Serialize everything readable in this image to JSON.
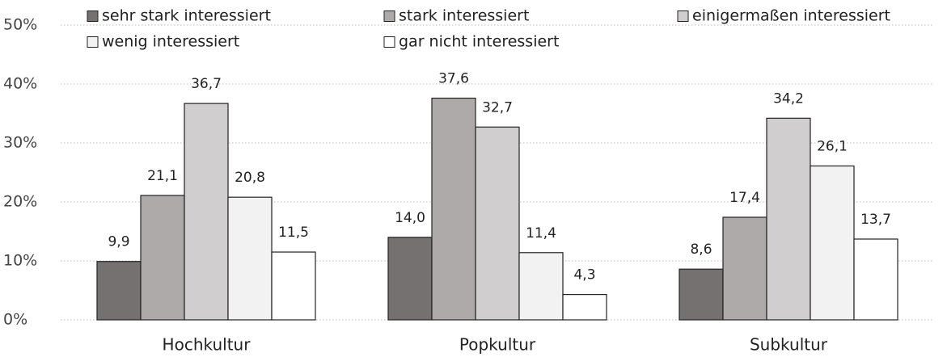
{
  "chart_data": {
    "type": "bar",
    "categories": [
      "Hochkultur",
      "Popkultur",
      "Subkultur"
    ],
    "series": [
      {
        "name": "sehr stark interessiert",
        "color": "#767171",
        "values": [
          9.9,
          14.0,
          8.6
        ],
        "value_labels": [
          "9,9",
          "14,0",
          "8,6"
        ]
      },
      {
        "name": "stark interessiert",
        "color": "#aeaaaa",
        "values": [
          21.1,
          37.6,
          17.4
        ],
        "value_labels": [
          "21,1",
          "37,6",
          "17,4"
        ]
      },
      {
        "name": "einigermaßen interessiert",
        "color": "#d0cece",
        "values": [
          36.7,
          32.7,
          34.2
        ],
        "value_labels": [
          "36,7",
          "32,7",
          "34,2"
        ]
      },
      {
        "name": "wenig interessiert",
        "color": "#f2f2f2",
        "values": [
          20.8,
          11.4,
          26.1
        ],
        "value_labels": [
          "20,8",
          "11,4",
          "26,1"
        ]
      },
      {
        "name": "gar nicht interessiert",
        "color": "#ffffff",
        "values": [
          11.5,
          4.3,
          13.7
        ],
        "value_labels": [
          "11,5",
          "4,3",
          "13,7"
        ]
      }
    ],
    "ylim": [
      0,
      50
    ],
    "yticks": [
      {
        "value": 0,
        "label": "0%"
      },
      {
        "value": 10,
        "label": "10%"
      },
      {
        "value": 20,
        "label": "20%"
      },
      {
        "value": 30,
        "label": "30%"
      },
      {
        "value": 40,
        "label": "40%"
      },
      {
        "value": 50,
        "label": "50%"
      }
    ],
    "grid": true,
    "legend": "top"
  }
}
